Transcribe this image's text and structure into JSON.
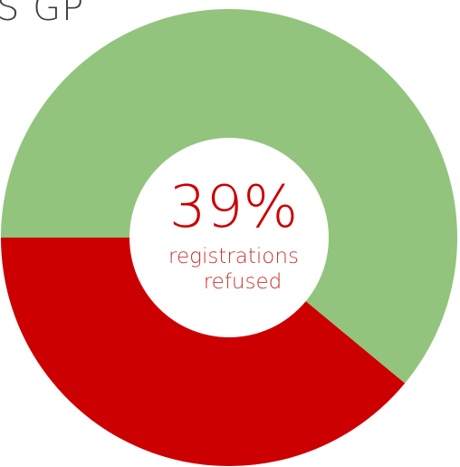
{
  "header": {
    "title": "S GP"
  },
  "chart_data": {
    "type": "pie",
    "style": "donut",
    "title": "S GP",
    "center_value": "39%",
    "center_label_line1": "registrations",
    "center_label_line2": "refused",
    "slices": [
      {
        "label": "registrations refused",
        "value": 39,
        "color": "#cc0000"
      },
      {
        "value": 61,
        "color": "#93c47d"
      }
    ],
    "start_angle": "left (9 o'clock), counter-clockwise",
    "legend": "none"
  }
}
